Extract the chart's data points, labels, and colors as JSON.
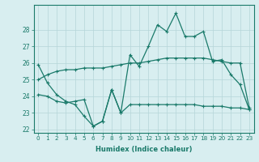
{
  "xlabel": "Humidex (Indice chaleur)",
  "x": [
    0,
    1,
    2,
    3,
    4,
    5,
    6,
    7,
    8,
    9,
    10,
    11,
    12,
    13,
    14,
    15,
    16,
    17,
    18,
    19,
    20,
    21,
    22,
    23
  ],
  "line1": [
    25.9,
    24.8,
    24.1,
    23.7,
    23.5,
    22.8,
    22.2,
    22.5,
    24.4,
    23.0,
    26.5,
    25.8,
    27.0,
    28.3,
    27.9,
    29.0,
    27.6,
    27.6,
    27.9,
    26.1,
    26.2,
    25.3,
    24.7,
    23.2
  ],
  "line2": [
    25.0,
    25.3,
    25.5,
    25.6,
    25.6,
    25.7,
    25.7,
    25.7,
    25.8,
    25.9,
    26.0,
    26.0,
    26.1,
    26.2,
    26.3,
    26.3,
    26.3,
    26.3,
    26.3,
    26.2,
    26.1,
    26.0,
    26.0,
    23.3
  ],
  "line3": [
    24.1,
    24.0,
    23.7,
    23.6,
    23.7,
    23.8,
    22.2,
    22.5,
    24.4,
    23.0,
    23.5,
    23.5,
    23.5,
    23.5,
    23.5,
    23.5,
    23.5,
    23.5,
    23.4,
    23.4,
    23.4,
    23.3,
    23.3,
    23.2
  ],
  "line_color": "#1a7a6a",
  "bg_color": "#d8eef0",
  "grid_color": "#b5d5d8",
  "ylim": [
    21.8,
    29.5
  ],
  "yticks": [
    22,
    23,
    24,
    25,
    26,
    27,
    28
  ],
  "xlim": [
    -0.5,
    23.5
  ]
}
